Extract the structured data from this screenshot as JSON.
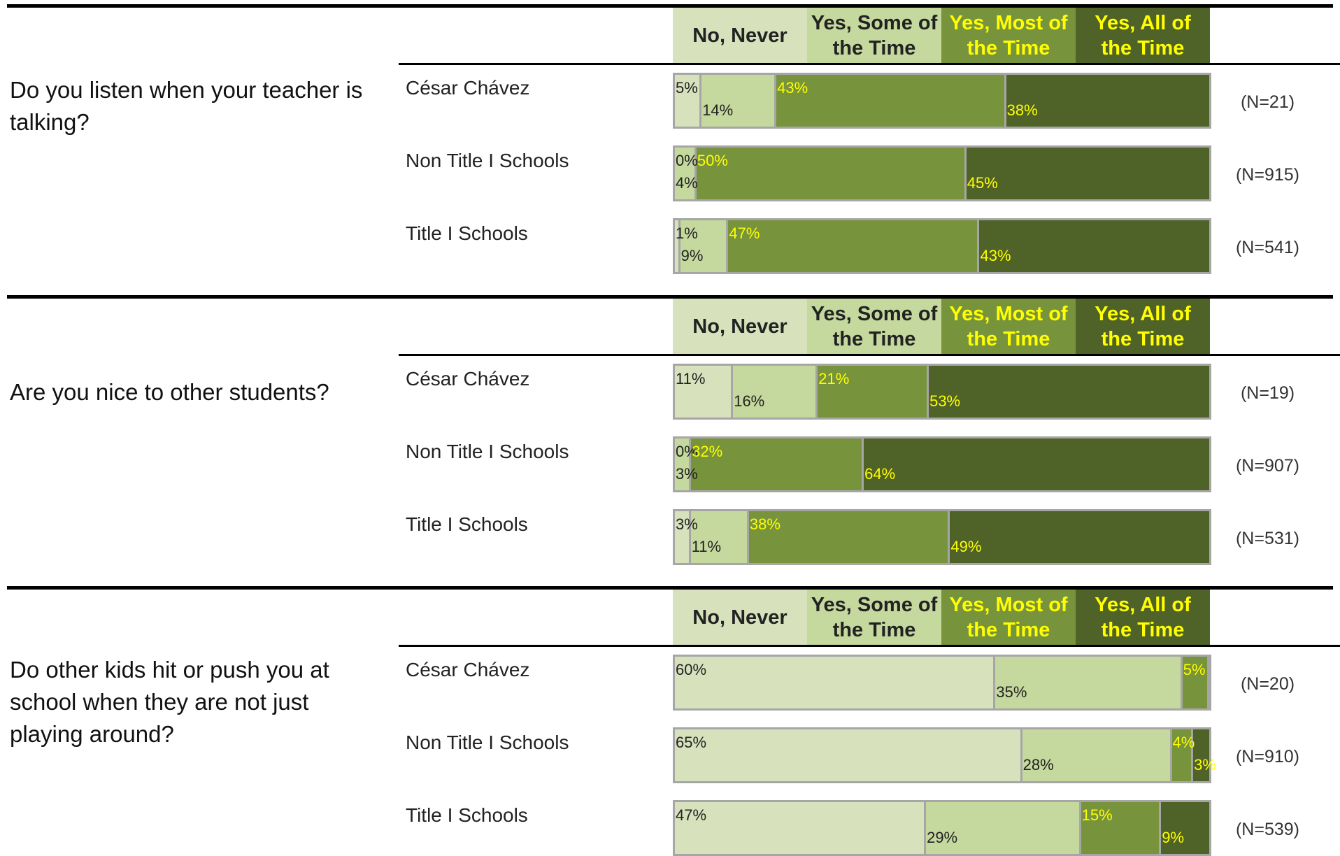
{
  "colors": {
    "no_never": "#d7e2bd",
    "some": "#c5d89d",
    "most": "#77933c",
    "all": "#4f6228",
    "dark_text": "#222222",
    "light_text": "#ffff00"
  },
  "chart_data": {
    "type": "bar",
    "orientation": "horizontal",
    "stacked": true,
    "legend": [
      "No, Never",
      "Yes, Some of the Time",
      "Yes, Most of the Time",
      "Yes, All of the Time"
    ],
    "questions": [
      {
        "question": "Do you listen when your teacher is talking?",
        "groups": [
          {
            "label": "César Chávez",
            "values": [
              5,
              14,
              43,
              38
            ],
            "labels": [
              "5%",
              "14%",
              "43%",
              "38%"
            ],
            "n": "(N=21)"
          },
          {
            "label": "Non Title I Schools",
            "values": [
              0,
              4,
              50,
              45
            ],
            "labels": [
              "0%",
              "4%",
              "50%",
              "45%"
            ],
            "n": "(N=915)"
          },
          {
            "label": "Title I Schools",
            "values": [
              1,
              9,
              47,
              43
            ],
            "labels": [
              "1%",
              "9%",
              "47%",
              "43%"
            ],
            "n": "(N=541)"
          }
        ]
      },
      {
        "question": "Are you nice to other students?",
        "groups": [
          {
            "label": "César Chávez",
            "values": [
              11,
              16,
              21,
              53
            ],
            "labels": [
              "11%",
              "16%",
              "21%",
              "53%"
            ],
            "n": "(N=19)"
          },
          {
            "label": "Non Title I Schools",
            "values": [
              0,
              3,
              32,
              64
            ],
            "labels": [
              "0%",
              "3%",
              "32%",
              "64%"
            ],
            "n": "(N=907)"
          },
          {
            "label": "Title I Schools",
            "values": [
              3,
              11,
              38,
              49
            ],
            "labels": [
              "3%",
              "11%",
              "38%",
              "49%"
            ],
            "n": "(N=531)"
          }
        ]
      },
      {
        "question": "Do other kids hit or push you at school when they are not just playing around?",
        "groups": [
          {
            "label": "César Chávez",
            "values": [
              60,
              35,
              5,
              0
            ],
            "labels": [
              "60%",
              "35%",
              "5%",
              ""
            ],
            "n": "(N=20)"
          },
          {
            "label": "Non Title I Schools",
            "values": [
              65,
              28,
              4,
              3
            ],
            "labels": [
              "65%",
              "28%",
              "4%",
              "3%"
            ],
            "n": "(N=910)"
          },
          {
            "label": "Title I Schools",
            "values": [
              47,
              29,
              15,
              9
            ],
            "labels": [
              "47%",
              "29%",
              "15%",
              "9%"
            ],
            "n": "(N=539)"
          }
        ]
      }
    ]
  }
}
